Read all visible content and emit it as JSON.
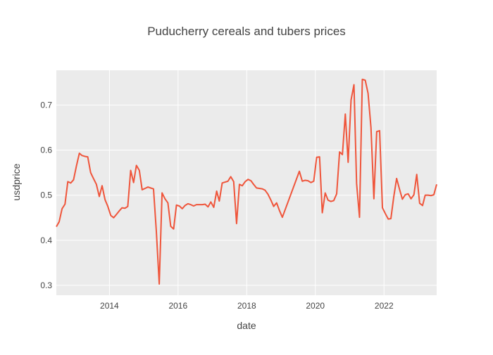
{
  "chart_data": {
    "type": "line",
    "title": "Puducherry cereals and tubers prices",
    "xlabel": "date",
    "ylabel": "usdprice",
    "x_ticks": [
      "2014",
      "2016",
      "2018",
      "2020",
      "2022"
    ],
    "y_ticks": [
      "0.3",
      "0.4",
      "0.5",
      "0.6",
      "0.7"
    ],
    "xlim": [
      "2012-06-15",
      "2023-07-15"
    ],
    "ylim": [
      0.278,
      0.777
    ],
    "grid": true,
    "series_color": "#EF553B",
    "plot_background": "#EBEBEB",
    "series": [
      {
        "x": [
          "2012-06-15",
          "2012-07-15",
          "2012-08-15",
          "2012-09-15",
          "2012-10-15",
          "2012-11-15",
          "2012-12-15",
          "2013-01-15",
          "2013-02-15",
          "2013-03-15",
          "2013-04-15",
          "2013-05-15",
          "2013-06-15",
          "2013-07-15",
          "2013-08-15",
          "2013-09-15",
          "2013-10-15",
          "2013-11-15",
          "2013-12-15",
          "2014-01-15",
          "2014-02-15",
          "2014-03-15",
          "2014-04-15",
          "2014-05-15",
          "2014-06-15",
          "2014-07-15",
          "2014-08-15",
          "2014-09-15",
          "2014-10-15",
          "2014-11-15",
          "2014-12-15",
          "2015-01-15",
          "2015-02-15",
          "2015-03-15",
          "2015-04-15",
          "2015-05-15",
          "2015-06-15",
          "2015-07-15",
          "2015-08-15",
          "2015-09-15",
          "2015-10-15",
          "2015-11-15",
          "2015-12-15",
          "2016-01-15",
          "2016-02-15",
          "2016-03-15",
          "2016-04-15",
          "2016-05-15",
          "2016-06-15",
          "2016-07-15",
          "2016-08-15",
          "2016-09-15",
          "2016-10-15",
          "2016-11-15",
          "2016-12-15",
          "2017-01-15",
          "2017-02-15",
          "2017-03-15",
          "2017-04-15",
          "2017-05-15",
          "2017-06-15",
          "2017-07-15",
          "2017-08-15",
          "2017-09-15",
          "2017-10-15",
          "2017-11-15",
          "2017-12-15",
          "2018-01-15",
          "2018-02-15",
          "2018-03-15",
          "2018-04-15",
          "2018-05-15",
          "2018-06-15",
          "2018-07-15",
          "2018-08-15",
          "2018-09-15",
          "2018-10-15",
          "2018-11-15",
          "2018-12-15",
          "2019-01-15",
          "2019-07-15",
          "2019-08-15",
          "2019-09-15",
          "2019-10-15",
          "2019-11-15",
          "2019-12-15",
          "2020-01-15",
          "2020-02-15",
          "2020-03-15",
          "2020-04-15",
          "2020-05-15",
          "2020-06-15",
          "2020-07-15",
          "2020-08-15",
          "2020-09-15",
          "2020-10-15",
          "2020-11-15",
          "2020-12-15",
          "2021-01-15",
          "2021-02-15",
          "2021-03-15",
          "2021-04-15",
          "2021-05-15",
          "2021-06-15",
          "2021-07-15",
          "2021-08-15",
          "2021-09-15",
          "2021-10-15",
          "2021-11-15",
          "2021-12-15",
          "2022-01-15",
          "2022-02-15",
          "2022-03-15",
          "2022-04-15",
          "2022-05-15",
          "2022-06-15",
          "2022-07-15",
          "2022-08-15",
          "2022-09-15",
          "2022-10-15",
          "2022-11-15",
          "2022-12-15",
          "2023-01-15",
          "2023-02-15",
          "2023-03-15",
          "2023-04-15",
          "2023-05-15",
          "2023-06-15",
          "2023-07-15"
        ],
        "y": [
          0.43,
          0.441,
          0.47,
          0.48,
          0.53,
          0.527,
          0.534,
          0.565,
          0.593,
          0.588,
          0.586,
          0.585,
          0.55,
          0.537,
          0.524,
          0.497,
          0.521,
          0.49,
          0.475,
          0.455,
          0.45,
          0.457,
          0.465,
          0.472,
          0.471,
          0.475,
          0.555,
          0.528,
          0.566,
          0.555,
          0.512,
          0.515,
          0.518,
          0.516,
          0.514,
          0.42,
          0.303,
          0.505,
          0.492,
          0.483,
          0.431,
          0.425,
          0.478,
          0.476,
          0.47,
          0.477,
          0.481,
          0.479,
          0.476,
          0.479,
          0.479,
          0.479,
          0.48,
          0.474,
          0.485,
          0.473,
          0.509,
          0.487,
          0.527,
          0.529,
          0.531,
          0.541,
          0.53,
          0.437,
          0.524,
          0.521,
          0.53,
          0.535,
          0.532,
          0.524,
          0.516,
          0.515,
          0.514,
          0.511,
          0.502,
          0.489,
          0.475,
          0.483,
          0.466,
          0.451,
          0.553,
          0.531,
          0.533,
          0.532,
          0.528,
          0.531,
          0.584,
          0.585,
          0.461,
          0.505,
          0.489,
          0.486,
          0.488,
          0.503,
          0.596,
          0.59,
          0.68,
          0.573,
          0.711,
          0.745,
          0.526,
          0.451,
          0.757,
          0.755,
          0.726,
          0.65,
          0.492,
          0.641,
          0.643,
          0.472,
          0.459,
          0.447,
          0.448,
          0.497,
          0.537,
          0.513,
          0.491,
          0.501,
          0.503,
          0.492,
          0.501,
          0.546,
          0.482,
          0.477,
          0.5,
          0.5,
          0.499,
          0.501,
          0.524
        ]
      }
    ]
  }
}
